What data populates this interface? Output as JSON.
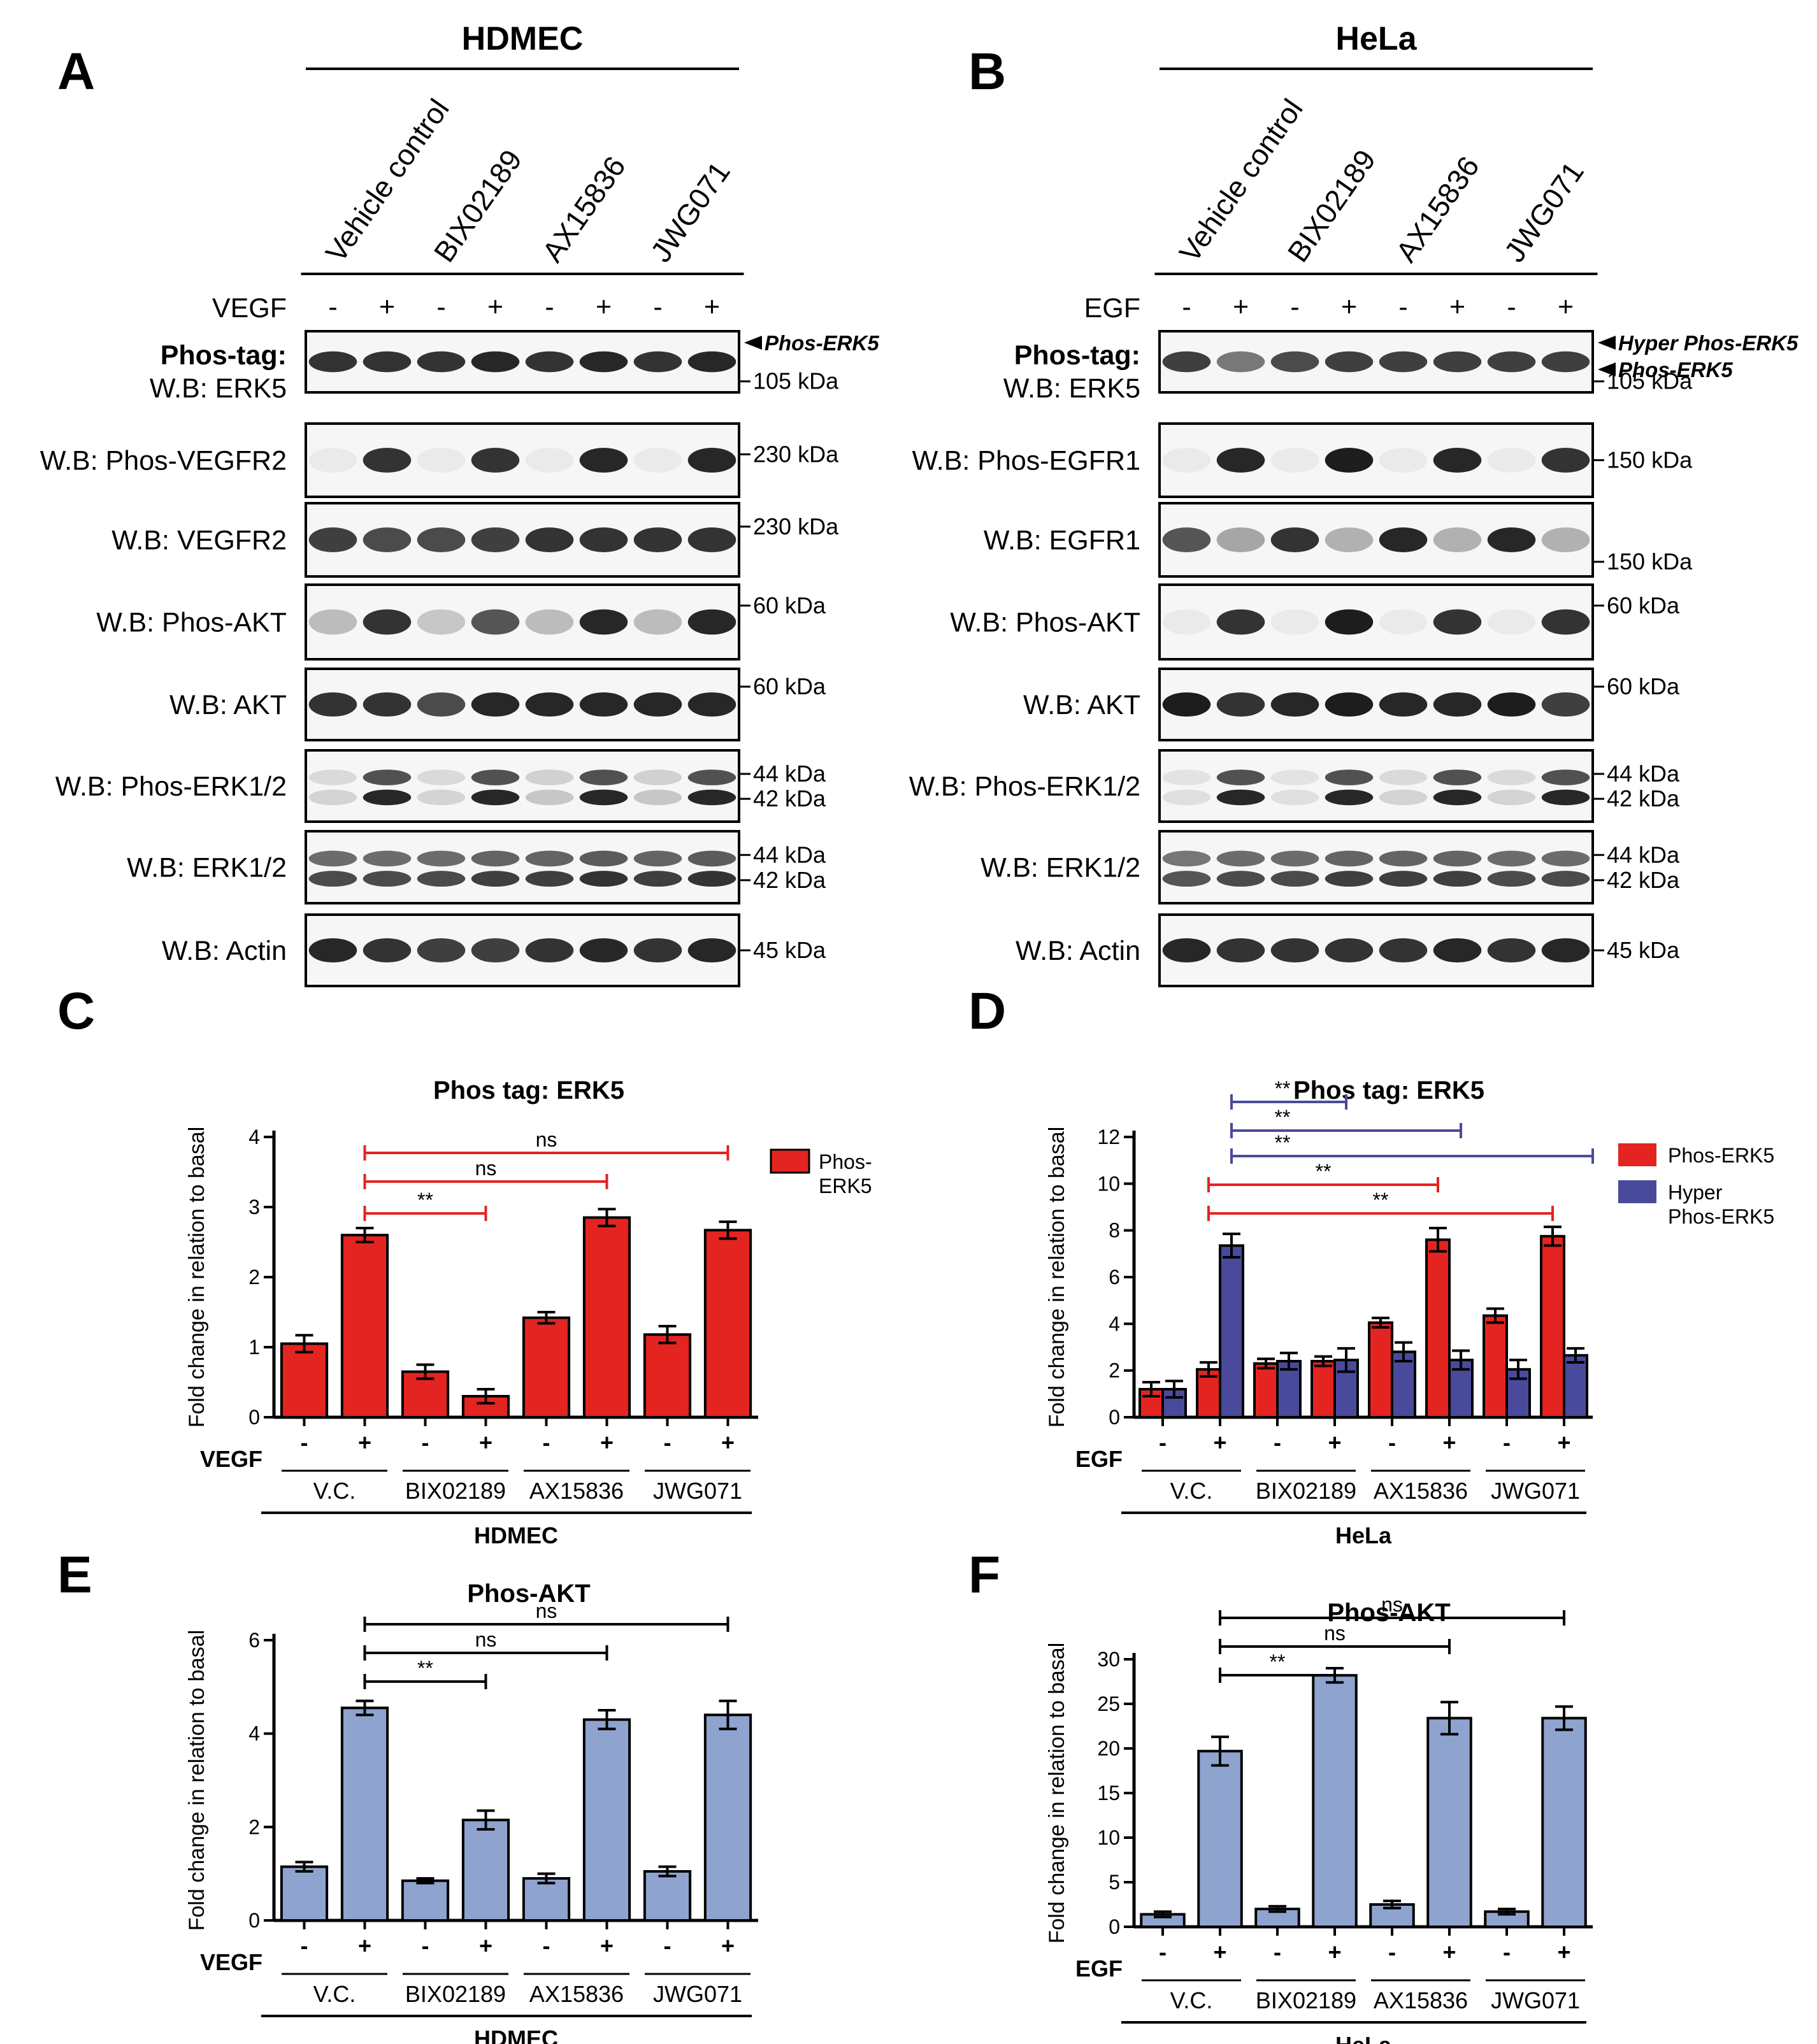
{
  "panels": {
    "A": "A",
    "B": "B",
    "C": "C",
    "D": "D",
    "E": "E",
    "F": "F"
  },
  "blots": [
    {
      "cell_line": "HDMEC",
      "treatments": [
        "Vehicle control",
        "BIX02189",
        "AX15836",
        "JWG071"
      ],
      "stimulus": "VEGF",
      "signs": [
        "-",
        "+",
        "-",
        "+",
        "-",
        "+",
        "-",
        "+"
      ],
      "rows": [
        {
          "label_bold": "Phos-tag:",
          "label": "W.B: ERK5",
          "kda": [
            "105 kDa"
          ],
          "arrows": [
            "Phos-ERK5"
          ]
        },
        {
          "label": "W.B: Phos-VEGFR2",
          "kda": [
            "230 kDa"
          ]
        },
        {
          "label": "W.B: VEGFR2",
          "kda": [
            "230 kDa"
          ]
        },
        {
          "label": "W.B: Phos-AKT",
          "kda": [
            "60 kDa"
          ]
        },
        {
          "label": "W.B: AKT",
          "kda": [
            "60 kDa"
          ]
        },
        {
          "label": "W.B: Phos-ERK1/2",
          "kda": [
            "44 kDa",
            "42 kDa"
          ]
        },
        {
          "label": "W.B: ERK1/2",
          "kda": [
            "44 kDa",
            "42 kDa"
          ]
        },
        {
          "label": "W.B: Actin",
          "kda": [
            "45 kDa"
          ]
        }
      ]
    },
    {
      "cell_line": "HeLa",
      "treatments": [
        "Vehicle control",
        "BIX02189",
        "AX15836",
        "JWG071"
      ],
      "stimulus": "EGF",
      "signs": [
        "-",
        "+",
        "-",
        "+",
        "-",
        "+",
        "-",
        "+"
      ],
      "rows": [
        {
          "label_bold": "Phos-tag:",
          "label": "W.B: ERK5",
          "kda": [
            "105 kDa"
          ],
          "arrows": [
            "Hyper Phos-ERK5",
            "Phos-ERK5"
          ]
        },
        {
          "label": "W.B: Phos-EGFR1",
          "kda": [
            "150 kDa"
          ]
        },
        {
          "label": "W.B: EGFR1",
          "kda": [
            "150 kDa"
          ]
        },
        {
          "label": "W.B: Phos-AKT",
          "kda": [
            "60 kDa"
          ]
        },
        {
          "label": "W.B: AKT",
          "kda": [
            "60 kDa"
          ]
        },
        {
          "label": "W.B: Phos-ERK1/2",
          "kda": [
            "44 kDa",
            "42 kDa"
          ]
        },
        {
          "label": "W.B: ERK1/2",
          "kda": [
            "44 kDa",
            "42 kDa"
          ]
        },
        {
          "label": "W.B: Actin",
          "kda": [
            "45 kDa"
          ]
        }
      ]
    }
  ],
  "colors": {
    "red": "#e42420",
    "blue": "#4a4a9c",
    "lightblue": "#8fa3cf"
  },
  "chart_data": [
    {
      "id": "C",
      "type": "bar",
      "title": "Phos tag: ERK5",
      "ylabel": "Fold change in relation to basal",
      "ylim": [
        0,
        4
      ],
      "yticks": [
        "0",
        "1",
        "2",
        "3",
        "4"
      ],
      "stim_label": "VEGF",
      "signs": [
        "-",
        "+",
        "-",
        "+",
        "-",
        "+",
        "-",
        "+"
      ],
      "groups": [
        "V.C.",
        "BIX02189",
        "AX15836",
        "JWG071"
      ],
      "cell_line": "HDMEC",
      "series": [
        {
          "name": "Phos-ERK5",
          "color": "#e42420",
          "values": [
            1.05,
            2.6,
            0.65,
            0.3,
            1.42,
            2.85,
            1.18,
            2.67
          ],
          "errors": [
            0.12,
            0.1,
            0.1,
            0.1,
            0.08,
            0.12,
            0.12,
            0.12
          ]
        }
      ],
      "legend": [
        "Phos-",
        "ERK5"
      ],
      "sig": [
        {
          "from": 1,
          "to": 3,
          "label": "**",
          "color": "#e42420"
        },
        {
          "from": 1,
          "to": 5,
          "label": "ns",
          "color": "#e42420"
        },
        {
          "from": 1,
          "to": 7,
          "label": "ns",
          "color": "#e42420"
        }
      ]
    },
    {
      "id": "D",
      "type": "bar",
      "title": "Phos tag: ERK5",
      "ylabel": "Fold change in relation to basal",
      "ylim": [
        0,
        12
      ],
      "yticks": [
        "0",
        "2",
        "4",
        "6",
        "8",
        "10",
        "12"
      ],
      "stim_label": "EGF",
      "signs": [
        "-",
        "+",
        "-",
        "+",
        "-",
        "+",
        "-",
        "+"
      ],
      "groups": [
        "V.C.",
        "BIX02189",
        "AX15836",
        "JWG071"
      ],
      "cell_line": "HeLa",
      "series": [
        {
          "name": "Phos-ERK5",
          "color": "#e42420",
          "values": [
            1.2,
            2.05,
            2.3,
            2.4,
            4.05,
            7.6,
            4.35,
            7.75
          ],
          "errors": [
            0.3,
            0.3,
            0.2,
            0.2,
            0.2,
            0.5,
            0.3,
            0.4
          ]
        },
        {
          "name": "Hyper Phos-ERK5",
          "color": "#4a4a9c",
          "values": [
            1.2,
            7.35,
            2.4,
            2.45,
            2.8,
            2.45,
            2.05,
            2.65
          ],
          "errors": [
            0.35,
            0.5,
            0.35,
            0.5,
            0.4,
            0.4,
            0.4,
            0.3
          ]
        }
      ],
      "legend": [
        "Phos-ERK5",
        "Hyper",
        "Phos-ERK5"
      ],
      "sig": [
        {
          "from": 1,
          "to": 7,
          "series": 0,
          "label": "**",
          "color": "#e42420"
        },
        {
          "from": 1,
          "to": 5,
          "series": 0,
          "label": "**",
          "color": "#e42420"
        },
        {
          "from": 1,
          "to": 7,
          "series": 1,
          "label": "**",
          "color": "#4a4a9c"
        },
        {
          "from": 1,
          "to": 5,
          "series": 1,
          "label": "**",
          "color": "#4a4a9c"
        },
        {
          "from": 1,
          "to": 3,
          "series": 1,
          "label": "**",
          "color": "#4a4a9c"
        }
      ]
    },
    {
      "id": "E",
      "type": "bar",
      "title": "Phos-AKT",
      "ylabel": "Fold change in relation to basal",
      "ylim": [
        0,
        6
      ],
      "yticks": [
        "0",
        "2",
        "4",
        "6"
      ],
      "stim_label": "VEGF",
      "signs": [
        "-",
        "+",
        "-",
        "+",
        "-",
        "+",
        "-",
        "+"
      ],
      "groups": [
        "V.C.",
        "BIX02189",
        "AX15836",
        "JWG071"
      ],
      "cell_line": "HDMEC",
      "series": [
        {
          "name": "Phos-AKT",
          "color": "#8fa3cf",
          "values": [
            1.15,
            4.55,
            0.85,
            2.15,
            0.9,
            4.3,
            1.05,
            4.4
          ],
          "errors": [
            0.1,
            0.15,
            0.05,
            0.2,
            0.1,
            0.2,
            0.1,
            0.3
          ]
        }
      ],
      "sig": [
        {
          "from": 1,
          "to": 3,
          "label": "**",
          "color": "#000000"
        },
        {
          "from": 1,
          "to": 5,
          "label": "ns",
          "color": "#000000"
        },
        {
          "from": 1,
          "to": 7,
          "label": "ns",
          "color": "#000000"
        }
      ]
    },
    {
      "id": "F",
      "type": "bar",
      "title": "Phos-AKT",
      "ylabel": "Fold change in relation to basal",
      "ylim": [
        0,
        30
      ],
      "yticks": [
        "0",
        "5",
        "10",
        "15",
        "20",
        "25",
        "30"
      ],
      "stim_label": "EGF",
      "signs": [
        "-",
        "+",
        "-",
        "+",
        "-",
        "+",
        "-",
        "+"
      ],
      "groups": [
        "V.C.",
        "BIX02189",
        "AX15836",
        "JWG071"
      ],
      "cell_line": "HeLa",
      "series": [
        {
          "name": "Phos-AKT",
          "color": "#8fa3cf",
          "values": [
            1.4,
            19.7,
            2.0,
            28.2,
            2.5,
            23.4,
            1.7,
            23.4
          ],
          "errors": [
            0.3,
            1.6,
            0.3,
            0.8,
            0.4,
            1.8,
            0.3,
            1.3
          ]
        }
      ],
      "sig": [
        {
          "from": 1,
          "to": 3,
          "label": "**",
          "color": "#000000"
        },
        {
          "from": 1,
          "to": 5,
          "label": "ns",
          "color": "#000000"
        },
        {
          "from": 1,
          "to": 7,
          "label": "ns",
          "color": "#000000"
        }
      ]
    }
  ]
}
